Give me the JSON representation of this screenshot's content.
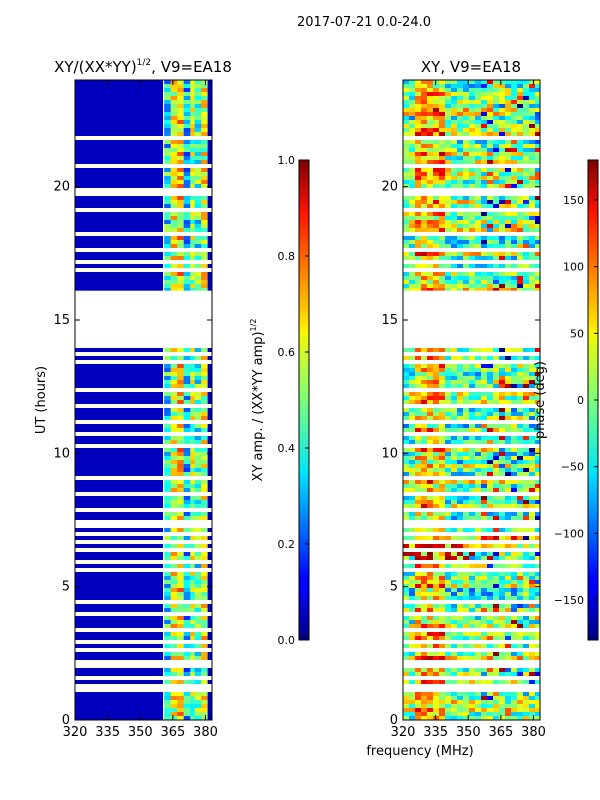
{
  "figure_title": "2017-07-21 0.0-24.0",
  "chart_data": [
    {
      "type": "heatmap",
      "title_prefix": "XY/(XX*YY)",
      "title_exp": "1/2",
      "title_suffix": ", V9=EA18",
      "xlabel": "",
      "ylabel": "UT (hours)",
      "xlim": [
        320,
        383
      ],
      "ylim": [
        0,
        24
      ],
      "xticks": [
        320,
        335,
        350,
        365,
        380
      ],
      "yticks": [
        0,
        5,
        10,
        15,
        20
      ],
      "colormap": "jet",
      "colorbar": {
        "label_prefix": "XY amp. / (XX*YY amp)",
        "label_exp": "1/2",
        "range": [
          0.0,
          1.0
        ],
        "ticks": [
          "0.0",
          "0.2",
          "0.4",
          "0.6",
          "0.8",
          "1.0"
        ],
        "tick_values": [
          0.0,
          0.2,
          0.4,
          0.6,
          0.8,
          1.0
        ]
      },
      "data_gaps_hours": [
        [
          16.1,
          14.0
        ]
      ],
      "description_low": 0.05,
      "description_high_band_mhz": [
        361,
        381
      ]
    },
    {
      "type": "heatmap",
      "title": "XY, V9=EA18",
      "xlabel": "frequency (MHz)",
      "ylabel": "",
      "xlim": [
        320,
        383
      ],
      "ylim": [
        0,
        24
      ],
      "xticks": [
        320,
        335,
        350,
        365,
        380
      ],
      "yticks": [
        0,
        5,
        10,
        15,
        20
      ],
      "colormap": "jet",
      "colorbar": {
        "label": "phase (deg)",
        "range": [
          -180,
          180
        ],
        "ticks": [
          "150",
          "100",
          "50",
          "0",
          "−50",
          "−100",
          "−150"
        ],
        "tick_values": [
          150,
          100,
          50,
          0,
          -50,
          -100,
          -150
        ]
      },
      "data_gaps_hours": [
        [
          16.1,
          14.0
        ]
      ]
    }
  ]
}
